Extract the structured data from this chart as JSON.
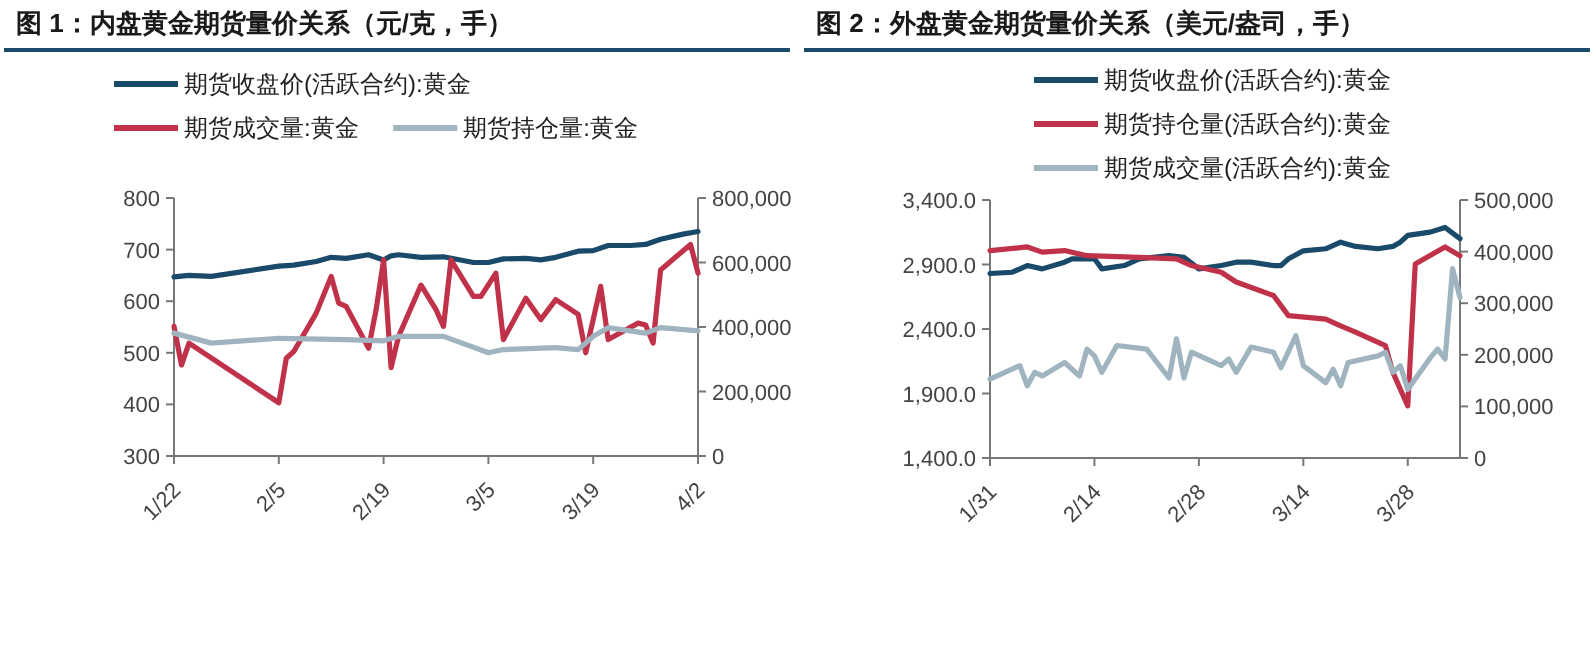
{
  "chart_data": [
    {
      "type": "line",
      "title": "图 1：内盘黄金期货量价关系（元/克，手）",
      "legend": "top",
      "xlim": [
        "--01-22",
        "--04-02"
      ],
      "xticks": [
        {
          "value": "--01-22",
          "label": "1/22"
        },
        {
          "value": "--02-05",
          "label": "2/5"
        },
        {
          "value": "--02-19",
          "label": "2/19"
        },
        {
          "value": "--03-05",
          "label": "3/5"
        },
        {
          "value": "--03-19",
          "label": "3/19"
        },
        {
          "value": "--04-02",
          "label": "4/2"
        }
      ],
      "ylim": [
        300,
        800
      ],
      "yticks": [
        300,
        400,
        500,
        600,
        700,
        800
      ],
      "y2lim": [
        0,
        800000
      ],
      "y2ticks": [
        0,
        {
          "value": 200000,
          "label": "200,000"
        },
        {
          "value": 400000,
          "label": "400,000"
        },
        {
          "value": 600000,
          "label": "600,000"
        },
        {
          "value": 800000,
          "label": "800,000"
        }
      ],
      "grid": false,
      "series": [
        {
          "name": "期货收盘价(活跃合约):黄金",
          "color": "#1a4a6a",
          "x": [
            "--01-22",
            "--01-24",
            "--01-27",
            "--02-05",
            "--02-07",
            "--02-10",
            "--02-12",
            "--02-14",
            "--02-17",
            "--02-19",
            "--02-20",
            "--02-21",
            "--02-24",
            "--02-27",
            "--03-03",
            "--03-05",
            "--03-07",
            "--03-10",
            "--03-12",
            "--03-14",
            "--03-17",
            "--03-19",
            "--03-21",
            "--03-24",
            "--03-26",
            "--03-28",
            "--03-31",
            "--04-02"
          ],
          "values": [
            647,
            650,
            648,
            668,
            670,
            677,
            685,
            683,
            690,
            680,
            688,
            690,
            685,
            686,
            675,
            675,
            682,
            683,
            680,
            685,
            697,
            698,
            708,
            708,
            710,
            720,
            730,
            735
          ]
        },
        {
          "name": "期货成交量:黄金",
          "color": "#c0324a",
          "axis": "y2",
          "x": [
            "--01-22",
            "--01-23",
            "--01-24",
            "--02-05",
            "--02-06",
            "--02-07",
            "--02-10",
            "--02-12",
            "--02-13",
            "--02-14",
            "--02-17",
            "--02-18",
            "--02-19",
            "--02-20",
            "--02-21",
            "--02-24",
            "--02-26",
            "--02-27",
            "--02-28",
            "--03-03",
            "--03-04",
            "--03-06",
            "--03-07",
            "--03-10",
            "--03-12",
            "--03-14",
            "--03-17",
            "--03-18",
            "--03-20",
            "--03-21",
            "--03-25",
            "--03-26",
            "--03-27",
            "--03-28",
            "--04-01",
            "--04-02"
          ],
          "values": [
            402000,
            282000,
            350000,
            165000,
            303000,
            324000,
            443000,
            557000,
            474000,
            464000,
            334000,
            454000,
            608000,
            274000,
            371000,
            530000,
            454000,
            402000,
            608000,
            495000,
            495000,
            567000,
            361000,
            489000,
            423000,
            485000,
            439000,
            320000,
            526000,
            361000,
            412000,
            406000,
            350000,
            577000,
            656000,
            567000
          ]
        },
        {
          "name": "期货持仓量:黄金",
          "color": "#a0b4c0",
          "axis": "y2",
          "x": [
            "--01-22",
            "--01-27",
            "--02-05",
            "--02-14",
            "--02-19",
            "--02-21",
            "--02-27",
            "--03-05",
            "--03-07",
            "--03-14",
            "--03-17",
            "--03-19",
            "--03-21",
            "--03-26",
            "--03-28",
            "--04-02"
          ],
          "values": [
            381000,
            350000,
            365000,
            361000,
            357000,
            371000,
            371000,
            320000,
            330000,
            336000,
            330000,
            371000,
            398000,
            381000,
            398000,
            388000
          ]
        }
      ]
    },
    {
      "type": "line",
      "title": "图 2：外盘黄金期货量价关系（美元/盎司，手）",
      "legend": "top right",
      "xlim": [
        "--01-31",
        "--04-04"
      ],
      "xticks": [
        {
          "value": "--01-31",
          "label": "1/31"
        },
        {
          "value": "--02-14",
          "label": "2/14"
        },
        {
          "value": "--02-28",
          "label": "2/28"
        },
        {
          "value": "--03-14",
          "label": "3/14"
        },
        {
          "value": "--03-28",
          "label": "3/28"
        }
      ],
      "ylim": [
        1400,
        3400
      ],
      "yticks": [
        {
          "value": 1400,
          "label": "1,400.0"
        },
        {
          "value": 1900,
          "label": "1,900.0"
        },
        {
          "value": 2400,
          "label": "2,400.0"
        },
        {
          "value": 2900,
          "label": "2,900.0"
        },
        {
          "value": 3400,
          "label": "3,400.0"
        }
      ],
      "y2lim": [
        0,
        500000
      ],
      "y2ticks": [
        0,
        {
          "value": 100000,
          "label": "100,000"
        },
        {
          "value": 200000,
          "label": "200,000"
        },
        {
          "value": 300000,
          "label": "300,000"
        },
        {
          "value": 400000,
          "label": "400,000"
        },
        {
          "value": 500000,
          "label": "500,000"
        }
      ],
      "grid": false,
      "series": [
        {
          "name": "期货收盘价(活跃合约):黄金",
          "color": "#1a4a6a",
          "x": [
            "--01-31",
            "--02-03",
            "--02-05",
            "--02-07",
            "--02-10",
            "--02-11",
            "--02-14",
            "--02-15",
            "--02-18",
            "--02-20",
            "--02-24",
            "--02-26",
            "--02-28",
            "--03-03",
            "--03-05",
            "--03-07",
            "--03-10",
            "--03-11",
            "--03-12",
            "--03-14",
            "--03-17",
            "--03-19",
            "--03-21",
            "--03-24",
            "--03-26",
            "--03-27",
            "--03-28",
            "--03-31",
            "--04-02",
            "--04-04"
          ],
          "values": [
            2830,
            2840,
            2892,
            2866,
            2918,
            2944,
            2944,
            2866,
            2892,
            2944,
            2970,
            2955,
            2866,
            2892,
            2918,
            2918,
            2892,
            2892,
            2944,
            3006,
            3022,
            3073,
            3040,
            3022,
            3040,
            3073,
            3126,
            3151,
            3187,
            3100
          ]
        },
        {
          "name": "期货持仓量(活跃合约):黄金",
          "color": "#c0324a",
          "axis": "y2",
          "x": [
            "--01-31",
            "--02-05",
            "--02-07",
            "--02-10",
            "--02-13",
            "--02-20",
            "--02-25",
            "--02-27",
            "--03-03",
            "--03-05",
            "--03-10",
            "--03-12",
            "--03-17",
            "--03-19",
            "--03-21",
            "--03-25",
            "--03-26",
            "--03-28",
            "--03-29",
            "--04-02",
            "--04-04"
          ],
          "values": [
            402000,
            409000,
            399000,
            402000,
            392000,
            389000,
            386000,
            373000,
            360000,
            341000,
            315000,
            276000,
            269000,
            256000,
            244000,
            218000,
            166000,
            101000,
            376000,
            409000,
            392000
          ]
        },
        {
          "name": "期货成交量(活跃合约):黄金",
          "color": "#a0b4c0",
          "axis": "y2",
          "x": [
            "--01-31",
            "--02-04",
            "--02-05",
            "--02-06",
            "--02-07",
            "--02-10",
            "--02-12",
            "--02-13",
            "--02-14",
            "--02-15",
            "--02-17",
            "--02-21",
            "--02-24",
            "--02-25",
            "--02-26",
            "--02-27",
            "--03-03",
            "--03-04",
            "--03-05",
            "--03-07",
            "--03-10",
            "--03-11",
            "--03-13",
            "--03-14",
            "--03-17",
            "--03-18",
            "--03-19",
            "--03-20",
            "--03-24",
            "--03-25",
            "--03-26",
            "--03-27",
            "--03-28",
            "--03-31",
            "--04-01",
            "--04-02",
            "--04-03",
            "--04-04"
          ],
          "values": [
            153000,
            179000,
            140000,
            166000,
            159000,
            185000,
            159000,
            211000,
            198000,
            166000,
            218000,
            211000,
            155000,
            231000,
            155000,
            205000,
            179000,
            192000,
            166000,
            215000,
            205000,
            175000,
            237000,
            179000,
            146000,
            172000,
            140000,
            185000,
            198000,
            205000,
            166000,
            179000,
            133000,
            194000,
            211000,
            192000,
            367000,
            311000
          ]
        }
      ]
    }
  ]
}
